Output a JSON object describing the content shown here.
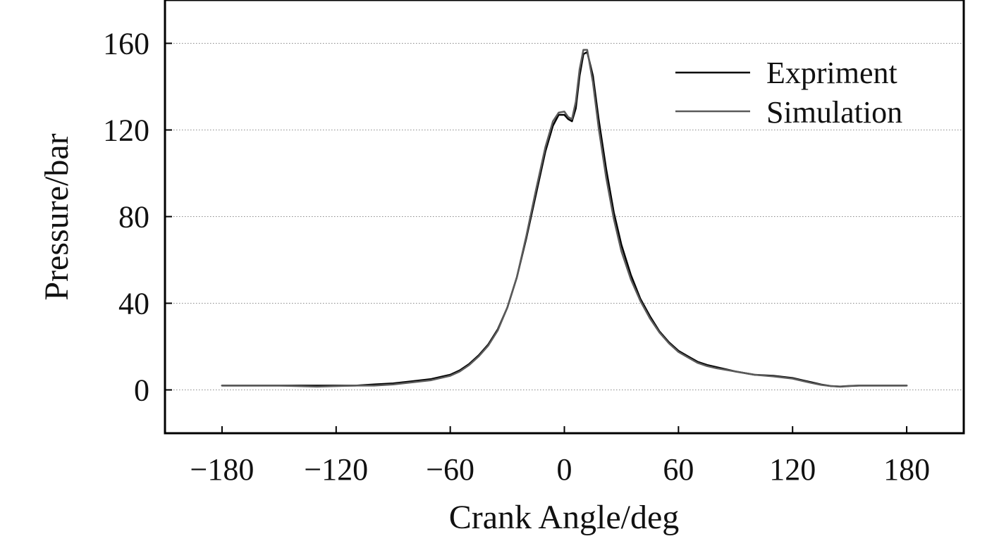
{
  "chart_data": {
    "type": "line",
    "title": "",
    "xlabel": "Crank Angle/deg",
    "ylabel": "Pressure/bar",
    "xlim": [
      -210,
      210
    ],
    "ylim": [
      -20,
      180
    ],
    "xticks": [
      -180,
      -120,
      -60,
      0,
      60,
      120,
      180
    ],
    "xtick_labels": [
      "−180",
      "−120",
      "−60",
      "0",
      "60",
      "120",
      "180"
    ],
    "yticks": [
      0,
      40,
      80,
      120,
      160
    ],
    "ytick_labels": [
      "0",
      "40",
      "80",
      "120",
      "160"
    ],
    "grid": "horizontal dotted",
    "legend_position": "top-right",
    "series": [
      {
        "name": "Expriment",
        "color": "#000000",
        "x": [
          -180,
          -150,
          -130,
          -110,
          -100,
          -90,
          -80,
          -70,
          -60,
          -55,
          -50,
          -45,
          -40,
          -35,
          -30,
          -25,
          -20,
          -15,
          -10,
          -6,
          -3,
          0,
          2,
          4,
          6,
          8,
          10,
          12,
          15,
          18,
          22,
          26,
          30,
          35,
          40,
          45,
          50,
          55,
          60,
          65,
          70,
          75,
          80,
          90,
          100,
          110,
          120,
          125,
          130,
          135,
          140,
          145,
          150,
          155,
          160,
          170,
          180
        ],
        "y": [
          2,
          2,
          2,
          2,
          2.5,
          3,
          4,
          5,
          7,
          9,
          12,
          16,
          21,
          28,
          38,
          52,
          70,
          90,
          110,
          122,
          127,
          127,
          125,
          124,
          130,
          145,
          155,
          156,
          145,
          125,
          102,
          82,
          67,
          53,
          42,
          34,
          27,
          22,
          18,
          15.5,
          13,
          11.5,
          10.5,
          8.5,
          7,
          6.5,
          5.5,
          4.5,
          3.5,
          2.5,
          1.8,
          1.5,
          1.8,
          2,
          2,
          2,
          2
        ]
      },
      {
        "name": "Simulation",
        "color": "#5a5a5a",
        "x": [
          -180,
          -150,
          -130,
          -110,
          -100,
          -90,
          -80,
          -70,
          -60,
          -55,
          -50,
          -45,
          -40,
          -35,
          -30,
          -25,
          -20,
          -15,
          -10,
          -6,
          -3,
          0,
          2,
          4,
          6,
          8,
          10,
          12,
          15,
          18,
          22,
          26,
          30,
          35,
          40,
          45,
          50,
          55,
          60,
          65,
          70,
          75,
          80,
          90,
          100,
          110,
          120,
          125,
          130,
          135,
          140,
          145,
          150,
          155,
          160,
          170,
          180
        ],
        "y": [
          2,
          2,
          1.5,
          2,
          2,
          2.5,
          3.5,
          4.5,
          6.5,
          8.5,
          11.5,
          15.5,
          20.5,
          27.5,
          38,
          52,
          71,
          92,
          112,
          124,
          128,
          128.5,
          126,
          125,
          133,
          148,
          157,
          157,
          142,
          121,
          98,
          79,
          64,
          51,
          41,
          33,
          26.5,
          21.5,
          17.5,
          15,
          12.5,
          11,
          10,
          8.5,
          7,
          6.2,
          5.2,
          4.2,
          3.2,
          2.3,
          1.8,
          1.6,
          1.9,
          2,
          2,
          2,
          2
        ]
      }
    ]
  }
}
